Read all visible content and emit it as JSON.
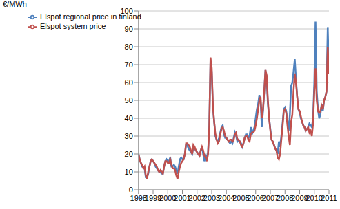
{
  "chart_data": {
    "type": "line",
    "y_label": "€/MWh",
    "x": [
      1998,
      1998.083,
      1998.167,
      1998.25,
      1998.333,
      1998.417,
      1998.5,
      1998.583,
      1998.667,
      1998.75,
      1998.833,
      1998.917,
      1999,
      1999.083,
      1999.167,
      1999.25,
      1999.333,
      1999.417,
      1999.5,
      1999.583,
      1999.667,
      1999.75,
      1999.833,
      1999.917,
      2000,
      2000.083,
      2000.167,
      2000.25,
      2000.333,
      2000.417,
      2000.5,
      2000.583,
      2000.667,
      2000.75,
      2000.833,
      2000.917,
      2001,
      2001.083,
      2001.167,
      2001.25,
      2001.333,
      2001.417,
      2001.5,
      2001.583,
      2001.667,
      2001.75,
      2001.833,
      2001.917,
      2002,
      2002.083,
      2002.167,
      2002.25,
      2002.333,
      2002.417,
      2002.5,
      2002.583,
      2002.667,
      2002.75,
      2002.833,
      2002.917,
      2003,
      2003.083,
      2003.167,
      2003.25,
      2003.333,
      2003.417,
      2003.5,
      2003.583,
      2003.667,
      2003.75,
      2003.833,
      2003.917,
      2004,
      2004.083,
      2004.167,
      2004.25,
      2004.333,
      2004.417,
      2004.5,
      2004.583,
      2004.667,
      2004.75,
      2004.833,
      2004.917,
      2005,
      2005.083,
      2005.167,
      2005.25,
      2005.333,
      2005.417,
      2005.5,
      2005.583,
      2005.667,
      2005.75,
      2005.833,
      2005.917,
      2006,
      2006.083,
      2006.167,
      2006.25,
      2006.333,
      2006.417,
      2006.5,
      2006.583,
      2006.667,
      2006.75,
      2006.833,
      2006.917,
      2007,
      2007.083,
      2007.167,
      2007.25,
      2007.333,
      2007.417,
      2007.5,
      2007.583,
      2007.667,
      2007.75,
      2007.833,
      2007.917,
      2008,
      2008.083,
      2008.167,
      2008.25,
      2008.333,
      2008.417,
      2008.5,
      2008.583,
      2008.667,
      2008.75,
      2008.833,
      2008.917,
      2009,
      2009.083,
      2009.167,
      2009.25,
      2009.333,
      2009.417,
      2009.5,
      2009.583,
      2009.667,
      2009.75,
      2009.833,
      2009.917,
      2010,
      2010.083,
      2010.167,
      2010.25,
      2010.333,
      2010.417,
      2010.5,
      2010.583,
      2010.667,
      2010.75,
      2010.833,
      2010.917,
      2011
    ],
    "series": [
      {
        "name": "Elspot regional price in finland",
        "color": "#4f81bd",
        "values": [
          20,
          17,
          15,
          13,
          13,
          12,
          7,
          7,
          9,
          13,
          16,
          17,
          16,
          15,
          13,
          12,
          11,
          10,
          10,
          9,
          9,
          13,
          16,
          17,
          16,
          16,
          18,
          13,
          13,
          14,
          13,
          11,
          9,
          13,
          17,
          18,
          17,
          17,
          20,
          25,
          25,
          23,
          22,
          21,
          20,
          24,
          23,
          22,
          21,
          20,
          19,
          22,
          24,
          20,
          16,
          19,
          18,
          21,
          36,
          72,
          66,
          46,
          38,
          30,
          28,
          27,
          29,
          32,
          35,
          36,
          31,
          29,
          29,
          28,
          27,
          26,
          27,
          26,
          29,
          32,
          30,
          27,
          28,
          27,
          26,
          24,
          26,
          29,
          31,
          31,
          29,
          30,
          35,
          31,
          33,
          35,
          40,
          45,
          48,
          53,
          50,
          35,
          44,
          55,
          67,
          62,
          48,
          40,
          34,
          28,
          27,
          25,
          23,
          22,
          20,
          27,
          24,
          30,
          37,
          45,
          46,
          44,
          39,
          33,
          42,
          58,
          60,
          66,
          73,
          62,
          52,
          45,
          43,
          40,
          38,
          36,
          35,
          33,
          34,
          35,
          37,
          36,
          35,
          40,
          60,
          94,
          55,
          45,
          40,
          42,
          48,
          44,
          50,
          52,
          55,
          91,
          65
        ]
      },
      {
        "name": "Elspot system  price",
        "color": "#c0504d",
        "values": [
          20,
          17,
          15,
          14,
          12,
          13,
          8,
          6,
          10,
          13,
          16,
          17,
          16,
          15,
          14,
          13,
          11,
          10,
          11,
          10,
          9,
          13,
          16,
          16,
          15,
          15,
          17,
          14,
          12,
          12,
          11,
          8,
          6,
          10,
          13,
          15,
          16,
          17,
          20,
          26,
          26,
          25,
          24,
          22,
          20,
          25,
          24,
          22,
          21,
          20,
          19,
          22,
          24,
          22,
          19,
          18,
          16,
          20,
          35,
          74,
          68,
          47,
          38,
          31,
          28,
          26,
          27,
          31,
          34,
          35,
          33,
          30,
          29,
          28,
          27,
          28,
          28,
          27,
          28,
          31,
          32,
          28,
          28,
          27,
          25,
          24,
          26,
          29,
          30,
          30,
          28,
          27,
          31,
          32,
          32,
          33,
          36,
          40,
          45,
          50,
          52,
          40,
          45,
          55,
          67,
          64,
          50,
          40,
          33,
          28,
          27,
          25,
          23,
          22,
          18,
          17,
          20,
          28,
          35,
          44,
          45,
          43,
          36,
          30,
          25,
          38,
          42,
          55,
          65,
          60,
          52,
          45,
          44,
          41,
          38,
          36,
          35,
          33,
          34,
          35,
          32,
          33,
          30,
          37,
          55,
          68,
          50,
          44,
          43,
          44,
          47,
          45,
          50,
          52,
          55,
          80,
          65
        ]
      }
    ],
    "xlim": [
      1998,
      2011
    ],
    "xticks": [
      1998,
      1999,
      2000,
      2001,
      2002,
      2003,
      2004,
      2005,
      2006,
      2007,
      2008,
      2009,
      2010,
      2011
    ],
    "ylim": [
      0,
      100
    ],
    "yticks": [
      0,
      10,
      20,
      30,
      40,
      50,
      60,
      70,
      80,
      90,
      100
    ],
    "grid": true,
    "legend": "top-left"
  }
}
